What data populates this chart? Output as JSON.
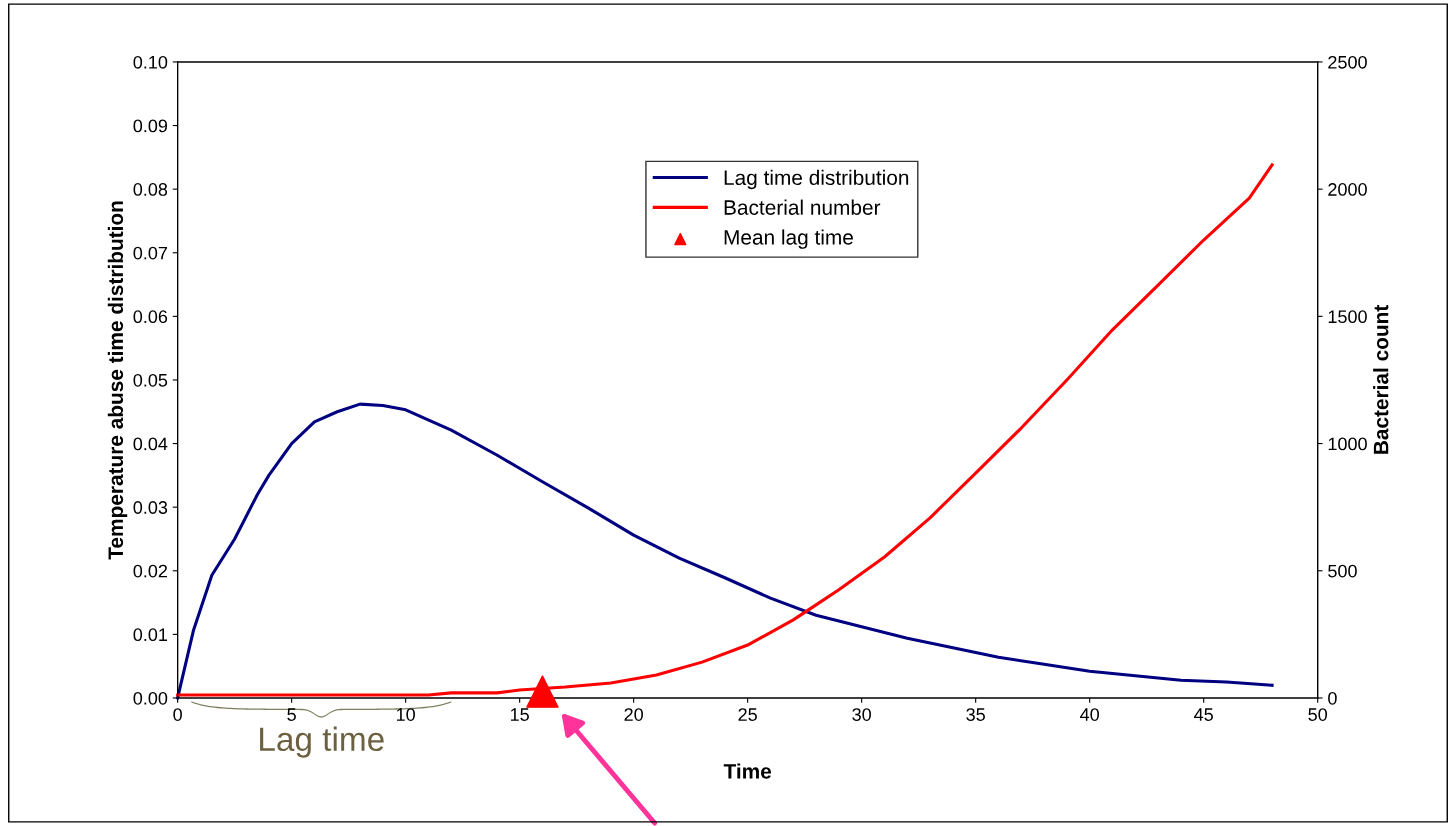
{
  "chart_data": {
    "type": "line",
    "xlabel": "Time",
    "ylabel": "Temperature abuse time distribution",
    "y2label": "Bacterial count",
    "series": [
      {
        "name": "Lag time distribution",
        "color": "#000080",
        "x": [
          0,
          0.7,
          1.5,
          2.5,
          3.5,
          4,
          5,
          6,
          7,
          8,
          9,
          10,
          12,
          14,
          16,
          18,
          20,
          22,
          24,
          26,
          28,
          30,
          32,
          34,
          36,
          38,
          40,
          42,
          44,
          46,
          48
        ],
        "values": [
          0,
          0.0107,
          0.0193,
          0.025,
          0.032,
          0.035,
          0.04,
          0.0434,
          0.045,
          0.0462,
          0.046,
          0.0453,
          0.0421,
          0.0382,
          0.034,
          0.0299,
          0.0256,
          0.022,
          0.0189,
          0.0157,
          0.013,
          0.0112,
          0.0094,
          0.0079,
          0.0064,
          0.0053,
          0.0042,
          0.0035,
          0.0028,
          0.0025,
          0.002
        ]
      },
      {
        "name": "Bacterial number",
        "color": "#ff0000",
        "axis": "y2",
        "x": [
          0,
          11,
          12,
          14,
          15,
          17,
          19,
          21,
          23,
          25,
          27,
          28,
          29,
          31,
          33,
          35,
          37,
          39,
          41,
          43,
          45,
          47,
          48
        ],
        "values": [
          12,
          12,
          20,
          20,
          31,
          43,
          59,
          90,
          141,
          208,
          307,
          366,
          425,
          554,
          708,
          884,
          1061,
          1250,
          1447,
          1623,
          1800,
          1965,
          2095
        ]
      },
      {
        "name": "Mean lag time",
        "type": "scatter",
        "marker": "triangle",
        "color": "#ff0000",
        "axis": "y2",
        "x": [
          16
        ],
        "values": [
          25
        ]
      }
    ],
    "annotations": [
      "Lag time"
    ],
    "xlim": [
      0,
      50
    ],
    "xticks": [
      0,
      5,
      10,
      15,
      20,
      25,
      30,
      35,
      40,
      45,
      50
    ],
    "ylim": [
      0,
      0.1
    ],
    "yticks": [
      {
        "value": 0,
        "label": "0.00"
      },
      {
        "value": 0.01,
        "label": "0.01"
      },
      {
        "value": 0.02,
        "label": "0.02"
      },
      {
        "value": 0.03,
        "label": "0.03"
      },
      {
        "value": 0.04,
        "label": "0.04"
      },
      {
        "value": 0.05,
        "label": "0.05"
      },
      {
        "value": 0.06,
        "label": "0.06"
      },
      {
        "value": 0.07,
        "label": "0.07"
      },
      {
        "value": 0.08,
        "label": "0.08"
      },
      {
        "value": 0.09,
        "label": "0.09"
      },
      {
        "value": 0.1,
        "label": "0.10"
      }
    ],
    "y2lim": [
      0,
      2500
    ],
    "y2ticks": [
      0,
      500,
      1000,
      1500,
      2000,
      2500
    ],
    "grid": false,
    "legend": "top",
    "marker": "none",
    "line_style": "solid"
  }
}
